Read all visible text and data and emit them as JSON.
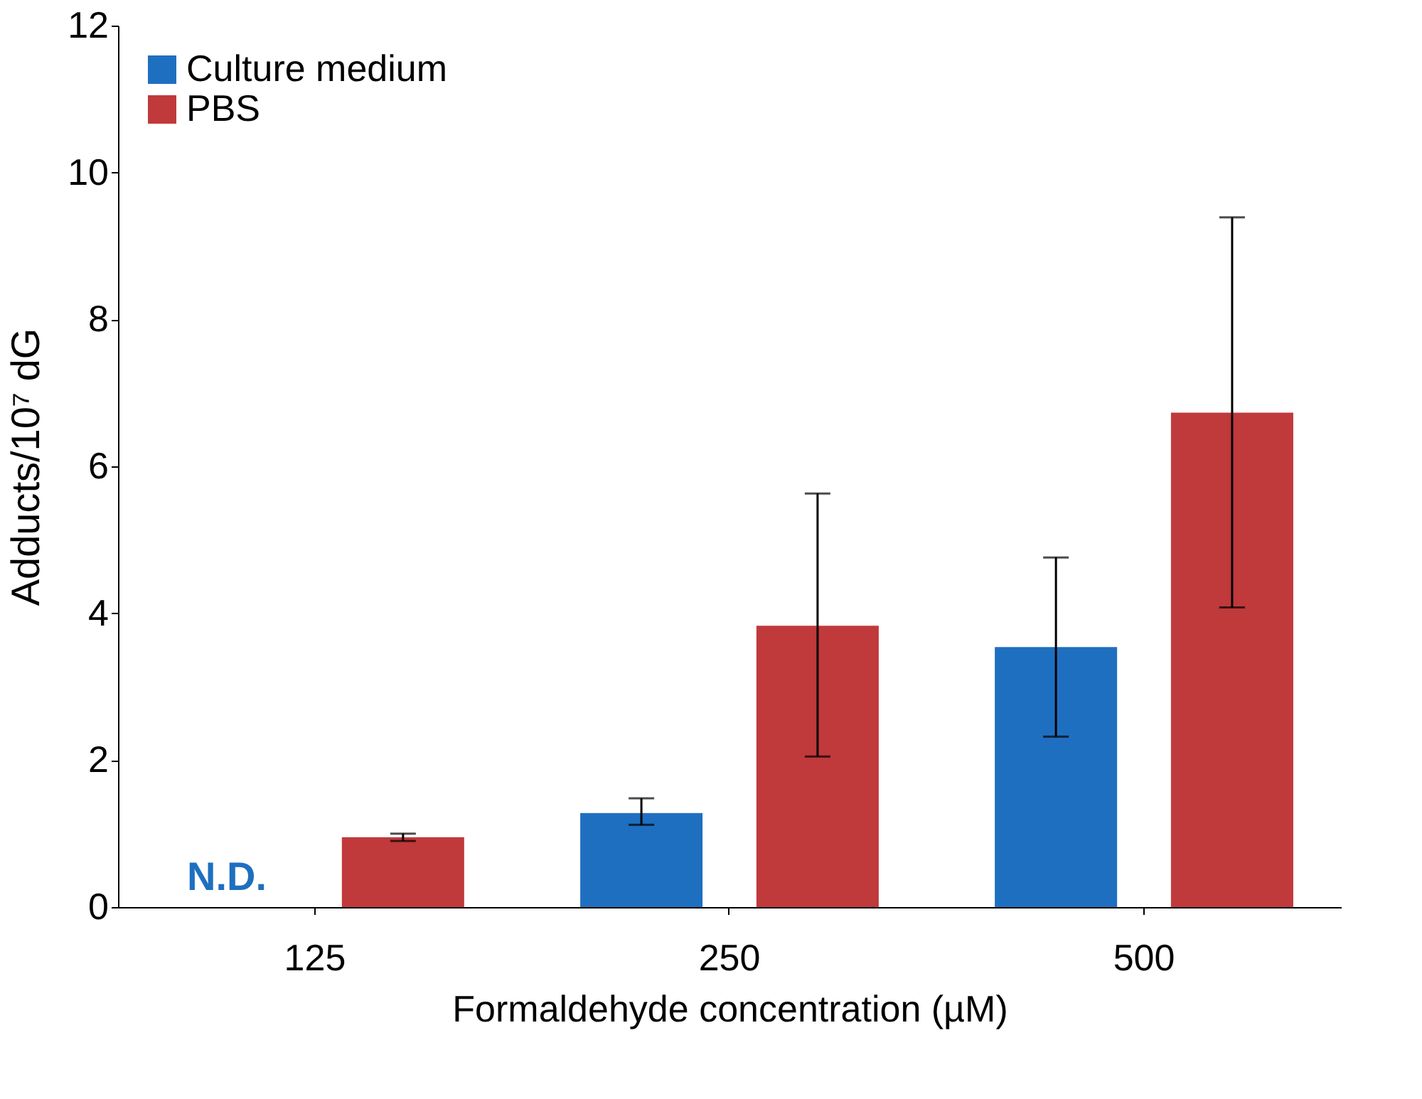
{
  "chart_data": {
    "type": "bar",
    "xlabel": "Formaldehyde concentration (µM)",
    "ylabel": "Adducts/10⁷ dG",
    "categories": [
      "125",
      "250",
      "500"
    ],
    "series": [
      {
        "name": "Culture medium",
        "color": "#1f6fc0",
        "values": [
          null,
          1.28,
          3.54
        ],
        "errors": [
          null,
          [
            1.12,
            1.48
          ],
          [
            2.32,
            4.76
          ]
        ]
      },
      {
        "name": "PBS",
        "color": "#c0393b",
        "values": [
          0.95,
          3.83,
          6.73
        ],
        "errors": [
          [
            0.9,
            1.0
          ],
          [
            2.05,
            5.63
          ],
          [
            4.08,
            9.39
          ]
        ]
      }
    ],
    "ylim": [
      0,
      12
    ],
    "yticks": [
      0,
      2,
      4,
      6,
      8,
      10,
      12
    ],
    "grid": false,
    "legend": "top left",
    "annotations": [
      "N.D."
    ]
  }
}
